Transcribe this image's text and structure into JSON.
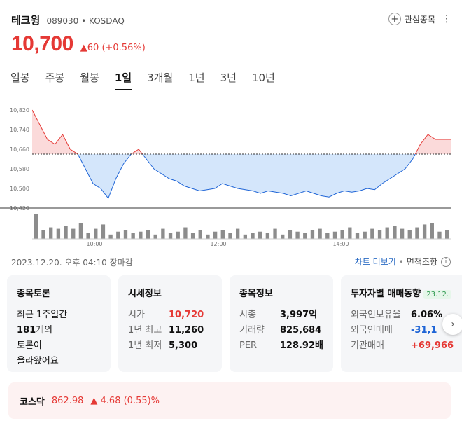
{
  "stock": {
    "name": "테크윙",
    "code": "089030 • KOSDAQ",
    "price": "10,700",
    "change": "▲60  (+0.56%)",
    "watch_label": "관심종목",
    "more_label": "⋮"
  },
  "tabs": [
    "일봉",
    "주봉",
    "월봉",
    "1일",
    "3개월",
    "1년",
    "3년",
    "10년"
  ],
  "active_tab": "1일",
  "colors": {
    "up": "#e53935",
    "down": "#1e64d6",
    "fill_down": "#d4e6fb",
    "fill_up": "#fbdada"
  },
  "chart_data": {
    "type": "area",
    "baseline": 10640,
    "ylim": [
      10420,
      10820
    ],
    "yticks": [
      "10,820",
      "10,740",
      "10,660",
      "10,580",
      "10,500",
      "10,420"
    ],
    "xticks": [
      "10:00",
      "12:00",
      "14:00"
    ],
    "price_series": [
      10820,
      10760,
      10700,
      10680,
      10720,
      10660,
      10640,
      10580,
      10520,
      10500,
      10460,
      10540,
      10600,
      10640,
      10660,
      10620,
      10580,
      10560,
      10540,
      10530,
      10510,
      10500,
      10490,
      10495,
      10500,
      10520,
      10510,
      10500,
      10495,
      10490,
      10480,
      10490,
      10485,
      10480,
      10470,
      10480,
      10490,
      10480,
      10470,
      10465,
      10480,
      10490,
      10485,
      10490,
      10500,
      10495,
      10520,
      10540,
      10560,
      10580,
      10620,
      10680,
      10720,
      10700,
      10700,
      10700
    ],
    "volume_series": [
      35,
      12,
      16,
      14,
      18,
      14,
      22,
      8,
      14,
      20,
      6,
      10,
      12,
      8,
      10,
      12,
      6,
      14,
      8,
      10,
      16,
      8,
      12,
      6,
      10,
      12,
      8,
      14,
      6,
      8,
      10,
      8,
      14,
      6,
      12,
      10,
      8,
      12,
      14,
      8,
      10,
      12,
      16,
      8,
      10,
      14,
      12,
      16,
      18,
      14,
      12,
      16,
      20,
      22,
      10,
      12
    ]
  },
  "meta": {
    "datetime": "2023.12.20. 오후 04:10 장마감",
    "chart_more": "차트 더보기",
    "disclaimer": "면책조항",
    "info_icon": "i"
  },
  "cards": {
    "talk": {
      "title": "종목토론",
      "line1": "최근 1주일간",
      "count": "181",
      "count_suffix": "개의",
      "line3": "토론이",
      "line4": "올라왔어요"
    },
    "quote": {
      "title": "시세정보",
      "rows": [
        {
          "label": "시가",
          "value": "10,720"
        },
        {
          "label": "1년 최고",
          "value": "11,260"
        },
        {
          "label": "1년 최저",
          "value": "5,300"
        }
      ]
    },
    "info": {
      "title": "종목정보",
      "rows": [
        {
          "label": "시총",
          "value": "3,997억"
        },
        {
          "label": "거래량",
          "value": "825,684"
        },
        {
          "label": "PER",
          "value": "128.92배"
        }
      ]
    },
    "investor": {
      "title": "투자자별 매매동향",
      "badge": "23.12.",
      "rows": [
        {
          "label": "외국인보유율",
          "value": "6.06%"
        },
        {
          "label": "외국인매매",
          "value": "-31,1"
        },
        {
          "label": "기관매매",
          "value": "+69,966"
        }
      ]
    }
  },
  "index": {
    "name": "코스닥",
    "value": "862.98",
    "change": "▲ 4.68 (0.55)%"
  }
}
